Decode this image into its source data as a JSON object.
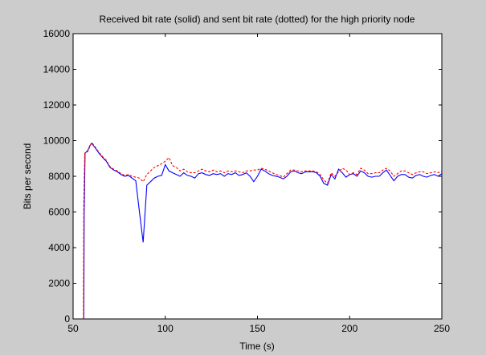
{
  "chart_data": {
    "type": "line",
    "title": "Received bit rate (solid) and sent bit rate (dotted) for the high priority node",
    "xlabel": "Time (s)",
    "ylabel": "Bits per second",
    "xlim": [
      50,
      250
    ],
    "ylim": [
      0,
      16000
    ],
    "xticks": [
      50,
      100,
      150,
      200,
      250
    ],
    "yticks": [
      0,
      2000,
      4000,
      6000,
      8000,
      10000,
      12000,
      14000,
      16000
    ],
    "grid": false,
    "series": [
      {
        "style": "solid",
        "color": "#0000ff",
        "x": [
          55.8,
          56.0,
          56.5,
          57,
          58,
          59,
          60,
          62,
          64,
          66,
          68,
          70,
          72,
          74,
          76,
          78,
          80,
          82,
          84,
          86,
          88,
          90,
          92,
          94,
          96,
          98,
          100,
          102,
          104,
          106,
          108,
          110,
          112,
          114,
          116,
          118,
          120,
          122,
          124,
          126,
          128,
          130,
          132,
          134,
          136,
          138,
          140,
          142,
          144,
          146,
          148,
          150,
          152,
          154,
          156,
          158,
          160,
          162,
          164,
          166,
          168,
          170,
          172,
          174,
          176,
          178,
          180,
          182,
          184,
          186,
          188,
          190,
          192,
          194,
          196,
          198,
          200,
          202,
          204,
          206,
          208,
          210,
          212,
          214,
          216,
          218,
          220,
          222,
          224,
          226,
          228,
          230,
          232,
          234,
          236,
          238,
          240,
          242,
          244,
          246,
          248,
          250
        ],
        "y": [
          0,
          6000,
          9300,
          9350,
          9450,
          9700,
          9850,
          9600,
          9300,
          9050,
          8850,
          8500,
          8350,
          8250,
          8100,
          8000,
          8050,
          7900,
          7750,
          6000,
          4300,
          7500,
          7700,
          7900,
          8000,
          8050,
          8650,
          8300,
          8200,
          8100,
          8000,
          8200,
          8050,
          8000,
          7900,
          8150,
          8200,
          8100,
          8050,
          8150,
          8100,
          8150,
          8000,
          8150,
          8100,
          8200,
          8050,
          8100,
          8200,
          8000,
          7700,
          8000,
          8400,
          8300,
          8150,
          8050,
          8000,
          7950,
          7850,
          8000,
          8250,
          8300,
          8200,
          8150,
          8250,
          8250,
          8250,
          8200,
          8000,
          7600,
          7500,
          8100,
          7850,
          8400,
          8200,
          7950,
          8100,
          8150,
          8000,
          8300,
          8200,
          8000,
          7950,
          8000,
          8000,
          8200,
          8350,
          8050,
          7750,
          8000,
          8100,
          8100,
          7950,
          7900,
          8050,
          8100,
          8000,
          7950,
          8050,
          8100,
          8000,
          8150
        ]
      },
      {
        "style": "dotted",
        "color": "#ff0000",
        "x": [
          55.6,
          55.8,
          56.3,
          57,
          58,
          59,
          60,
          62,
          64,
          66,
          68,
          70,
          72,
          74,
          76,
          78,
          80,
          82,
          84,
          86,
          88,
          90,
          92,
          94,
          96,
          98,
          100,
          102,
          104,
          106,
          108,
          110,
          112,
          114,
          116,
          118,
          120,
          122,
          124,
          126,
          128,
          130,
          132,
          134,
          136,
          138,
          140,
          142,
          144,
          146,
          148,
          150,
          152,
          154,
          156,
          158,
          160,
          162,
          164,
          166,
          168,
          170,
          172,
          174,
          176,
          178,
          180,
          182,
          184,
          186,
          188,
          190,
          192,
          194,
          196,
          198,
          200,
          202,
          204,
          206,
          208,
          210,
          212,
          214,
          216,
          218,
          220,
          222,
          224,
          226,
          228,
          230,
          232,
          234,
          236,
          238,
          240,
          242,
          244,
          246,
          248,
          250
        ],
        "y": [
          0,
          6500,
          9300,
          9300,
          9400,
          9650,
          9900,
          9650,
          9350,
          9100,
          8900,
          8550,
          8400,
          8300,
          8150,
          8050,
          8100,
          8000,
          7950,
          7900,
          7700,
          8100,
          8300,
          8500,
          8600,
          8700,
          8850,
          9050,
          8600,
          8500,
          8300,
          8400,
          8250,
          8200,
          8200,
          8300,
          8400,
          8300,
          8250,
          8350,
          8250,
          8300,
          8200,
          8300,
          8250,
          8300,
          8250,
          8200,
          8300,
          8300,
          8350,
          8350,
          8450,
          8400,
          8300,
          8200,
          8100,
          8050,
          7950,
          8150,
          8350,
          8350,
          8300,
          8250,
          8300,
          8300,
          8300,
          8250,
          8100,
          7800,
          7600,
          8200,
          8000,
          8250,
          8450,
          8350,
          8100,
          8200,
          8100,
          8450,
          8350,
          8150,
          8150,
          8200,
          8200,
          8350,
          8450,
          8300,
          8000,
          8150,
          8300,
          8300,
          8200,
          8100,
          8200,
          8250,
          8250,
          8150,
          8200,
          8250,
          8200,
          8300
        ]
      }
    ]
  }
}
